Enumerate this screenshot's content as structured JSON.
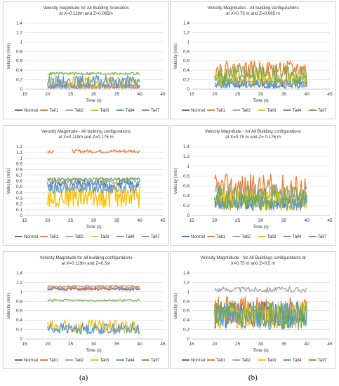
{
  "captions": [
    "(a)",
    "(b)"
  ],
  "palette": {
    "Normal": "#4472C4",
    "Tall1": "#ED7D31",
    "Tall2": "#A5A5A5",
    "Tall3": "#FFC000",
    "Tall4": "#5B9BD5",
    "Tall7": "#70AD47"
  },
  "chart_data": [
    {
      "type": "line",
      "title": "Velocity magnitude for All Building Scenarios",
      "subtitle": "at X=0.119m and Z=0.065m",
      "xlabel": "Time (s)",
      "ylabel": "Velocity (m/s)",
      "xlim": [
        15,
        45
      ],
      "ylim": [
        0,
        1.4
      ],
      "xticks": [
        15,
        20,
        25,
        30,
        35,
        40,
        45
      ],
      "yticks": [
        0,
        0.2,
        0.4,
        0.6,
        0.8,
        1,
        1.2,
        1.4
      ],
      "ytick_labels": [
        "0",
        "0.2",
        "0.4",
        "0.6",
        "0.8",
        "1",
        "1.2",
        "1.4"
      ],
      "grid": true,
      "legend": "bottom",
      "series": [
        {
          "name": "Normal",
          "base": 0.07,
          "amp": 0.05,
          "seed": 11
        },
        {
          "name": "Tall1",
          "base": 0.05,
          "amp": 0.04,
          "seed": 12
        },
        {
          "name": "Tall2",
          "base": 0.05,
          "amp": 0.04,
          "seed": 13
        },
        {
          "name": "Tall3",
          "base": 0.14,
          "amp": 0.12,
          "seed": 14
        },
        {
          "name": "Tall4",
          "base": 0.15,
          "amp": 0.14,
          "seed": 15
        },
        {
          "name": "Tall7",
          "base": 0.33,
          "amp": 0.03,
          "seed": 16
        }
      ]
    },
    {
      "type": "line",
      "title": "Velocity Magnitudes - All building configurations",
      "subtitle": "at X=0.75 m and Z=0.065 m",
      "xlabel": "Time (s)",
      "ylabel": "Velocity (m/s)",
      "xlim": [
        15,
        45
      ],
      "ylim": [
        0,
        1.4
      ],
      "xticks": [
        15,
        20,
        25,
        30,
        35,
        40,
        45
      ],
      "yticks": [
        0,
        0.2,
        0.4,
        0.6,
        0.8,
        1,
        1.2,
        1.4
      ],
      "ytick_labels": [
        "0",
        "0.2",
        "0.4",
        "0.6",
        "0.8",
        "1",
        "1.2",
        "1.4"
      ],
      "grid": true,
      "legend": "bottom",
      "series": [
        {
          "name": "Normal",
          "base": 0.1,
          "amp": 0.08,
          "seed": 21
        },
        {
          "name": "Tall1",
          "base": 0.42,
          "amp": 0.18,
          "seed": 22
        },
        {
          "name": "Tall2",
          "base": 0.15,
          "amp": 0.12,
          "seed": 23
        },
        {
          "name": "Tall3",
          "base": 0.2,
          "amp": 0.16,
          "seed": 24
        },
        {
          "name": "Tall4",
          "base": 0.12,
          "amp": 0.1,
          "seed": 25
        },
        {
          "name": "Tall7",
          "base": 0.3,
          "amp": 0.22,
          "seed": 26
        }
      ]
    },
    {
      "type": "line",
      "title": "Velocity Magnitude - All building configurations",
      "subtitle": "at X=0.119m and Z=0.176 m",
      "xlabel": "Time (s)",
      "ylabel": "Velocity (m/s)",
      "xlim": [
        15,
        45
      ],
      "ylim": [
        0,
        1.2
      ],
      "xticks": [
        15,
        20,
        25,
        30,
        35,
        40,
        45
      ],
      "yticks": [
        0,
        0.1,
        0.2,
        0.3,
        0.4,
        0.5,
        0.6,
        0.7,
        0.8,
        0.9,
        1,
        1.1,
        1.2
      ],
      "ytick_labels": [
        "0",
        "0.1",
        "0.2",
        "0.3",
        "0.4",
        "0.5",
        "0.6",
        "0.7",
        "0.8",
        "0.9",
        "1",
        "1.1",
        "1.2"
      ],
      "grid": true,
      "legend": "bottom",
      "series": [
        {
          "name": "Normal",
          "base": 0.55,
          "amp": 0.08,
          "seed": 31
        },
        {
          "name": "Tall1",
          "base": 1.12,
          "amp": 0.03,
          "seed": 32,
          "gap": true
        },
        {
          "name": "Tall2",
          "base": 0.6,
          "amp": 0.06,
          "seed": 33
        },
        {
          "name": "Tall3",
          "base": 0.35,
          "amp": 0.22,
          "seed": 34
        },
        {
          "name": "Tall4",
          "base": 0.48,
          "amp": 0.1,
          "seed": 35
        },
        {
          "name": "Tall7",
          "base": 0.63,
          "amp": 0.03,
          "seed": 36
        }
      ]
    },
    {
      "type": "line",
      "title": "Velocity Magnitude - for All Building configurations",
      "subtitle": "at X=0.75 m and Z= 0.176 m",
      "xlabel": "Time (s)",
      "ylabel": "Velocity (m/s)",
      "xlim": [
        15,
        45
      ],
      "ylim": [
        0,
        1.4
      ],
      "xticks": [
        15,
        20,
        25,
        30,
        35,
        40,
        45
      ],
      "yticks": [
        0,
        0.2,
        0.4,
        0.6,
        0.8,
        1,
        1.2,
        1.4
      ],
      "ytick_labels": [
        "0",
        "0.2",
        "0.4",
        "0.6",
        "0.8",
        "1",
        "1.2",
        "1.4"
      ],
      "grid": true,
      "legend": "bottom",
      "series": [
        {
          "name": "Normal",
          "base": 0.25,
          "amp": 0.12,
          "seed": 41
        },
        {
          "name": "Tall1",
          "base": 0.55,
          "amp": 0.3,
          "seed": 42
        },
        {
          "name": "Tall2",
          "base": 0.4,
          "amp": 0.25,
          "seed": 43
        },
        {
          "name": "Tall3",
          "base": 0.3,
          "amp": 0.2,
          "seed": 44
        },
        {
          "name": "Tall4",
          "base": 0.25,
          "amp": 0.15,
          "seed": 45
        },
        {
          "name": "Tall7",
          "base": 0.35,
          "amp": 0.25,
          "seed": 46
        }
      ]
    },
    {
      "type": "line",
      "title": "Velocity Magnitude for all building configurations",
      "subtitle": "at X=0.119m and Z=0.5m",
      "xlabel": "Time (s)",
      "ylabel": "Velocity (m/s)",
      "xlim": [
        15,
        45
      ],
      "ylim": [
        0,
        1.4
      ],
      "xticks": [
        15,
        20,
        25,
        30,
        35,
        40,
        45
      ],
      "yticks": [
        0,
        0.2,
        0.4,
        0.6,
        0.8,
        1,
        1.2,
        1.4
      ],
      "ytick_labels": [
        "0",
        "0.2",
        "0.4",
        "0.6",
        "0.8",
        "1",
        "1.2",
        "1.4"
      ],
      "grid": true,
      "legend": "bottom",
      "series": [
        {
          "name": "Normal",
          "base": 1.06,
          "amp": 0.03,
          "seed": 51
        },
        {
          "name": "Tall1",
          "base": 1.08,
          "amp": 0.05,
          "seed": 52
        },
        {
          "name": "Tall2",
          "base": 1.12,
          "amp": 0.02,
          "seed": 53
        },
        {
          "name": "Tall3",
          "base": 0.25,
          "amp": 0.15,
          "seed": 54
        },
        {
          "name": "Tall4",
          "base": 0.22,
          "amp": 0.12,
          "seed": 55
        },
        {
          "name": "Tall7",
          "base": 0.82,
          "amp": 0.02,
          "seed": 56
        }
      ]
    },
    {
      "type": "line",
      "title": "Velocity Magntidude - for All Buildings  configurations at",
      "subtitle": "X=0.75 m and Z=0.5 m",
      "xlabel": "Time (s)",
      "ylabel": "Velocity (m/s)",
      "xlim": [
        15,
        45
      ],
      "ylim": [
        0,
        1.4
      ],
      "xticks": [
        15,
        20,
        25,
        30,
        35,
        40,
        45
      ],
      "yticks": [
        0,
        0.2,
        0.4,
        0.6,
        0.8,
        1,
        1.2,
        1.4
      ],
      "ytick_labels": [
        "0",
        "0.2",
        "0.4",
        "0.6",
        "0.8",
        "1",
        "1.2",
        "1.4"
      ],
      "grid": true,
      "legend": "bottom",
      "series": [
        {
          "name": "Normal",
          "base": 0.5,
          "amp": 0.3,
          "seed": 61
        },
        {
          "name": "Tall1",
          "base": 0.6,
          "amp": 0.3,
          "seed": 62
        },
        {
          "name": "Tall2",
          "base": 1.05,
          "amp": 0.06,
          "seed": 63
        },
        {
          "name": "Tall3",
          "base": 0.5,
          "amp": 0.3,
          "seed": 64
        },
        {
          "name": "Tall4",
          "base": 0.5,
          "amp": 0.3,
          "seed": 65
        },
        {
          "name": "Tall7",
          "base": 0.5,
          "amp": 0.3,
          "seed": 66
        }
      ]
    }
  ]
}
